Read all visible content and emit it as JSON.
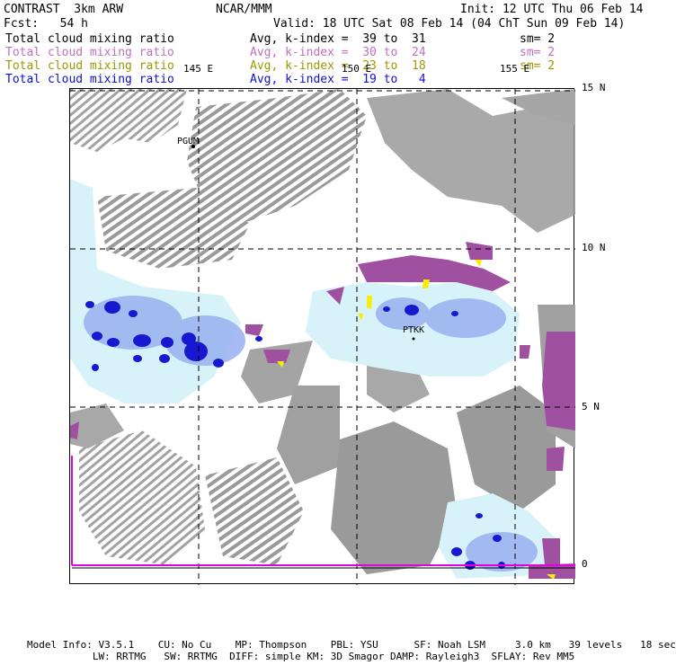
{
  "header": {
    "title_left": "CONTRAST  3km ARW",
    "title_center": "NCAR/MMM",
    "init": "Init: 12 UTC Thu 06 Feb 14",
    "fcst": "Fcst:   54 h",
    "valid": "Valid: 18 UTC Sat 08 Feb 14 (04 ChT Sun 09 Feb 14)"
  },
  "legend": [
    {
      "field": "Total cloud mixing ratio",
      "stat": "Avg, k-index =  39 to  31",
      "sm": "sm= 2",
      "color": "#000000"
    },
    {
      "field": "Total cloud mixing ratio",
      "stat": "Avg, k-index =  30 to  24",
      "sm": "sm= 2",
      "color": "#c070c0"
    },
    {
      "field": "Total cloud mixing ratio",
      "stat": "Avg, k-index =  23 to  18",
      "sm": "sm= 2",
      "color": "#9a9a00"
    },
    {
      "field": "Total cloud mixing ratio",
      "stat": "Avg, k-index =  19 to   4",
      "sm": "",
      "color": "#1010d0"
    }
  ],
  "lon_labels": [
    "145 E",
    "150 E",
    "155 E"
  ],
  "lat_labels": [
    "15 N",
    "10 N",
    "5 N",
    "0"
  ],
  "stations": [
    "PGUM",
    "PTKK"
  ],
  "colors": {
    "low_cloud_gray": "#9a9a9a",
    "mid_cloud_magenta": "#a050a0",
    "upper_cloud_yellow": "#f4f000",
    "blue_light": "#d8f2fa",
    "blue_mid": "#9cb4f0",
    "blue_dark": "#1818d0",
    "boundary": "#e000e0"
  },
  "footer": {
    "line1": "Model Info: V3.5.1    CU: No Cu    MP: Thompson    PBL: YSU      SF: Noah LSM     3.0 km   39 levels   18 sec",
    "line2": "           LW: RRTMG   SW: RRTMG  DIFF: simple KM: 3D Smagor DAMP: Rayleigh3  SFLAY: Rev MM5"
  }
}
